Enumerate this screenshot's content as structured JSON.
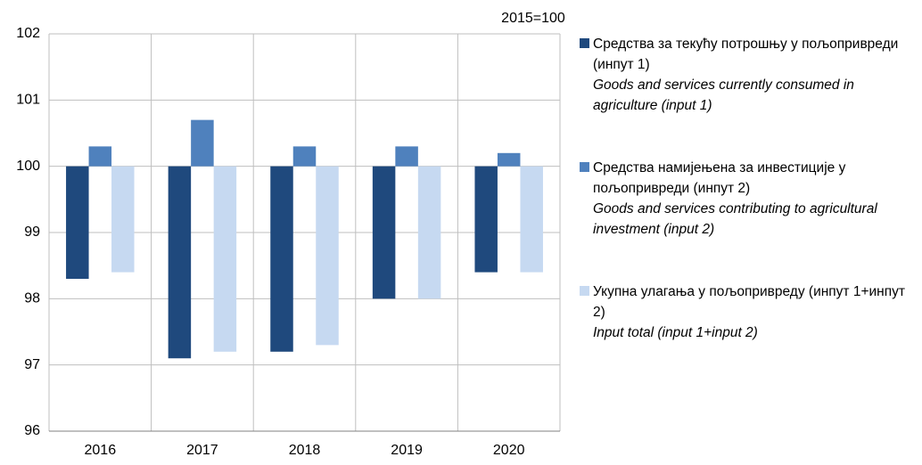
{
  "chart_data": {
    "type": "bar",
    "annotation": "2015=100",
    "categories": [
      "2016",
      "2017",
      "2018",
      "2019",
      "2020"
    ],
    "baseline": 100,
    "series": [
      {
        "name": "Средства за текућу потрошњу у пољопривреди (инпут 1)",
        "name_en": "Goods and services currently consumed in agriculture (input 1)",
        "color": "#1f497d",
        "values": [
          98.3,
          97.1,
          97.2,
          98.0,
          98.4
        ]
      },
      {
        "name": "Средства намијењена за инвестиције у пољопривреди (инпут 2)",
        "name_en": "Goods and services contributing to agricultural investment (input 2)",
        "color": "#4f81bd",
        "values": [
          100.3,
          100.7,
          100.3,
          100.3,
          100.2
        ]
      },
      {
        "name": "Укупна улагања у пољопривреду (инпут 1+инпут 2)",
        "name_en": "Input total (input 1+input 2)",
        "color": "#c6d9f1",
        "values": [
          98.4,
          97.2,
          97.3,
          98.0,
          98.4
        ]
      }
    ],
    "ylim": [
      96,
      102
    ],
    "yticks": [
      96,
      97,
      98,
      99,
      100,
      101,
      102
    ],
    "grid": true
  }
}
